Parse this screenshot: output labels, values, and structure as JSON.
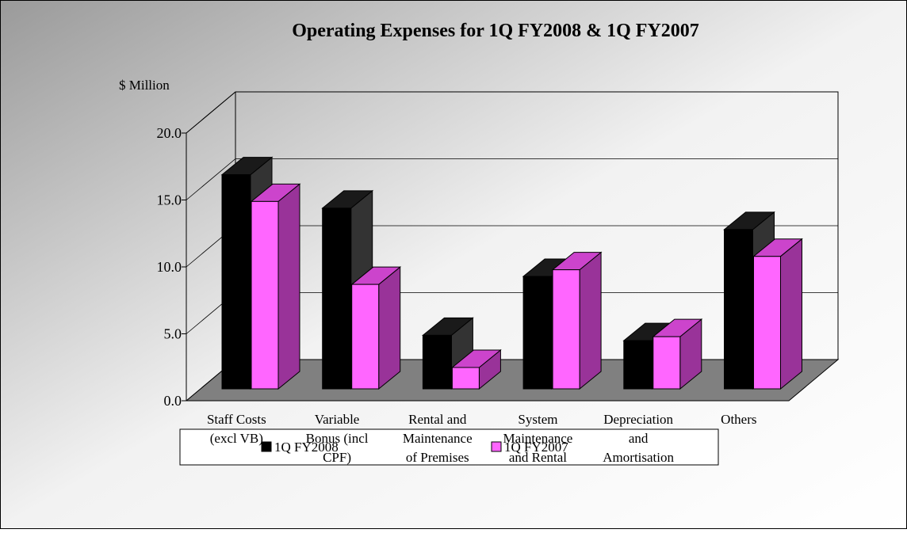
{
  "chart_data": {
    "type": "bar3d",
    "title": "Operating Expenses for 1Q FY2008 & 1Q FY2007",
    "y_axis_label": "$ Million",
    "categories": [
      "Staff Costs\n(excl VB)",
      "Variable\nBonus (incl\nCPF)",
      "Rental and\nMaintenance\nof Premises",
      "System\nMaintenance\nand Rental",
      "Depreciation\nand\nAmortisation",
      "Others"
    ],
    "series": [
      {
        "name": "1Q FY2008",
        "color": "#000000",
        "values": [
          16.0,
          13.5,
          4.0,
          8.4,
          3.6,
          11.9
        ]
      },
      {
        "name": "1Q FY2007",
        "color": "#ff66ff",
        "values": [
          14.0,
          7.8,
          1.6,
          8.9,
          3.9,
          9.9
        ]
      }
    ],
    "ylim": [
      0,
      20
    ],
    "yticks": [
      {
        "value": 0,
        "label": "0.0"
      },
      {
        "value": 5,
        "label": "5.0"
      },
      {
        "value": 10,
        "label": "10.0"
      },
      {
        "value": 15,
        "label": "15.0"
      },
      {
        "value": 20,
        "label": "20.0"
      }
    ],
    "grid": true,
    "legend": "bottom"
  }
}
